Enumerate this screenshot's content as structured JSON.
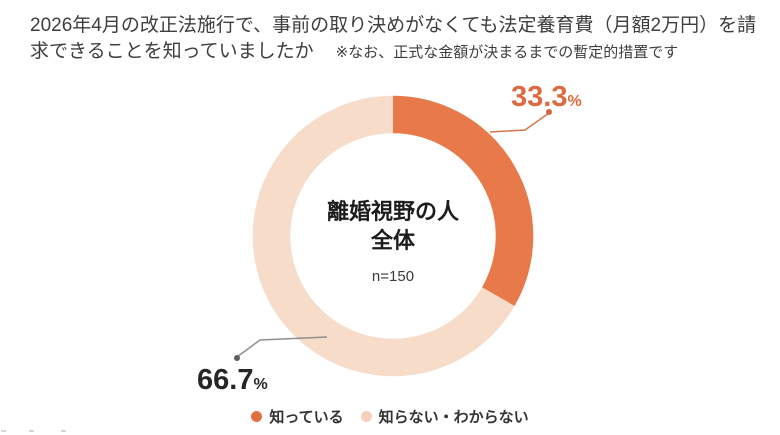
{
  "page": {
    "background": "#ffffff"
  },
  "header": {
    "title_line1": "2026年4月の改正法施行で、事前の取り決めがなくても法定養育費（月額2万円）を請",
    "title_line2": "求できることを知っていましたか",
    "note": "※なお、正式な金額が決まるまでの暫定的措置です"
  },
  "chart_data": {
    "type": "pie",
    "subtype": "donut",
    "title": "2026年4月の改正法施行で、事前の取り決めがなくても法定養育費（月額2万円）を請求できることを知っていましたか",
    "subtitle_note": "※なお、正式な金額が決まるまでの暫定的措置です",
    "labels": [
      "知っている",
      "知らない・わからない"
    ],
    "values": [
      33.3,
      66.7
    ],
    "unit": "%",
    "colors": [
      "#E8794A",
      "#F6DCC9"
    ],
    "start_angle_deg": 0,
    "direction": "clockwise",
    "legend_position": "bottom",
    "center": {
      "line1": "離婚視野の人",
      "line2": "全体",
      "sample_size": "n=150"
    },
    "annotations": [
      {
        "label": "33.3",
        "unit": "%",
        "color": "#DC6A40"
      },
      {
        "label": "66.7",
        "unit": "%",
        "color": "#262626"
      }
    ]
  },
  "legend": {
    "items": [
      {
        "label": "知っている",
        "color": "#E0713F"
      },
      {
        "label": "知らない・わからない",
        "color": "#F4D0BA"
      }
    ]
  }
}
